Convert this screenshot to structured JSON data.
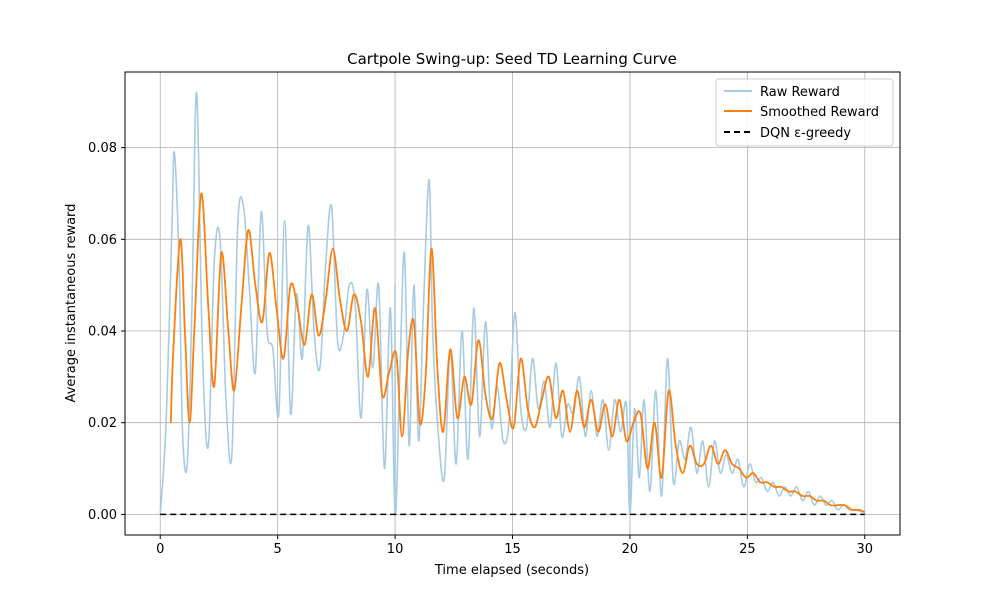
{
  "chart_data": {
    "type": "line",
    "title": "Cartpole Swing-up: Seed TD Learning Curve",
    "xlabel": "Time elapsed (seconds)",
    "ylabel": "Average instantaneous reward",
    "xlim": [
      -1.5,
      31.5
    ],
    "ylim": [
      -0.0045,
      0.0965
    ],
    "x_ticks": [
      0,
      5,
      10,
      15,
      20,
      25,
      30
    ],
    "x_tick_labels": [
      "0",
      "5",
      "10",
      "15",
      "20",
      "25",
      "30"
    ],
    "y_ticks": [
      0.0,
      0.02,
      0.04,
      0.06,
      0.08
    ],
    "y_tick_labels": [
      "0.00",
      "0.02",
      "0.04",
      "0.06",
      "0.08"
    ],
    "grid": true,
    "legend_position": "top-right",
    "series": [
      {
        "name": "Raw Reward",
        "color": "#a6cbe3",
        "style": "solid",
        "x": [
          0.0,
          0.25,
          0.5,
          0.6,
          0.8,
          0.95,
          1.15,
          1.35,
          1.55,
          1.8,
          2.05,
          2.3,
          2.55,
          2.8,
          3.05,
          3.3,
          3.55,
          3.8,
          4.05,
          4.3,
          4.55,
          4.8,
          5.05,
          5.3,
          5.55,
          5.8,
          6.05,
          6.3,
          6.55,
          6.8,
          7.05,
          7.3,
          7.55,
          7.8,
          8.05,
          8.3,
          8.55,
          8.8,
          9.05,
          9.3,
          9.55,
          9.8,
          10.0,
          10.2,
          10.4,
          10.6,
          10.8,
          11.0,
          11.2,
          11.45,
          11.6,
          11.85,
          12.1,
          12.35,
          12.6,
          12.85,
          13.1,
          13.35,
          13.6,
          13.85,
          14.1,
          14.35,
          14.6,
          14.85,
          15.1,
          15.35,
          15.6,
          15.85,
          16.1,
          16.35,
          16.6,
          16.85,
          17.1,
          17.35,
          17.6,
          17.85,
          18.1,
          18.35,
          18.6,
          18.85,
          19.1,
          19.35,
          19.6,
          19.85,
          20.0,
          20.2,
          20.4,
          20.6,
          20.85,
          21.1,
          21.35,
          21.6,
          21.85,
          22.1,
          22.35,
          22.6,
          22.85,
          23.1,
          23.35,
          23.6,
          23.85,
          24.1,
          24.35,
          24.6,
          24.85,
          25.1,
          25.35,
          25.6,
          25.85,
          26.1,
          26.35,
          26.6,
          26.85,
          27.1,
          27.35,
          27.6,
          27.85,
          28.1,
          28.35,
          28.6,
          28.85,
          29.1,
          29.35,
          29.6,
          29.85,
          30.0
        ],
        "y": [
          0.0,
          0.02,
          0.063,
          0.079,
          0.055,
          0.018,
          0.011,
          0.045,
          0.092,
          0.035,
          0.015,
          0.055,
          0.06,
          0.025,
          0.013,
          0.063,
          0.067,
          0.049,
          0.031,
          0.066,
          0.04,
          0.036,
          0.022,
          0.064,
          0.022,
          0.048,
          0.034,
          0.063,
          0.04,
          0.032,
          0.055,
          0.067,
          0.038,
          0.039,
          0.05,
          0.046,
          0.021,
          0.049,
          0.032,
          0.05,
          0.01,
          0.045,
          0.0,
          0.03,
          0.057,
          0.015,
          0.05,
          0.016,
          0.044,
          0.073,
          0.04,
          0.017,
          0.008,
          0.036,
          0.011,
          0.04,
          0.012,
          0.045,
          0.017,
          0.042,
          0.019,
          0.028,
          0.016,
          0.02,
          0.044,
          0.023,
          0.019,
          0.034,
          0.023,
          0.029,
          0.019,
          0.033,
          0.017,
          0.024,
          0.022,
          0.03,
          0.017,
          0.027,
          0.017,
          0.025,
          0.014,
          0.025,
          0.018,
          0.024,
          0.0,
          0.023,
          0.008,
          0.025,
          0.005,
          0.027,
          0.004,
          0.034,
          0.007,
          0.016,
          0.012,
          0.019,
          0.009,
          0.016,
          0.006,
          0.016,
          0.009,
          0.013,
          0.009,
          0.012,
          0.006,
          0.011,
          0.007,
          0.008,
          0.005,
          0.007,
          0.004,
          0.006,
          0.004,
          0.006,
          0.003,
          0.005,
          0.002,
          0.004,
          0.002,
          0.003,
          0.001,
          0.002,
          0.001,
          0.001,
          0.0006,
          0.0005
        ],
        "jumps": [
          [
            10.0,
            0.05,
            0.0
          ],
          [
            20.0,
            0.025,
            0.0
          ]
        ]
      },
      {
        "name": "Smoothed Reward",
        "color": "#ff7f0e",
        "style": "solid",
        "x": [
          0.45,
          0.55,
          0.85,
          1.05,
          1.25,
          1.45,
          1.75,
          2.05,
          2.3,
          2.6,
          2.9,
          3.15,
          3.45,
          3.75,
          4.05,
          4.35,
          4.65,
          4.95,
          5.25,
          5.55,
          5.85,
          6.15,
          6.45,
          6.75,
          7.05,
          7.35,
          7.65,
          7.95,
          8.25,
          8.55,
          8.85,
          9.15,
          9.45,
          9.75,
          10.05,
          10.3,
          10.55,
          10.8,
          11.05,
          11.3,
          11.55,
          11.8,
          12.05,
          12.35,
          12.65,
          12.95,
          13.25,
          13.55,
          13.85,
          14.15,
          14.45,
          14.75,
          15.05,
          15.35,
          15.65,
          15.95,
          16.25,
          16.55,
          16.85,
          17.15,
          17.45,
          17.75,
          18.05,
          18.35,
          18.65,
          18.95,
          19.25,
          19.55,
          19.85,
          20.15,
          20.45,
          20.75,
          21.05,
          21.35,
          21.65,
          21.95,
          22.25,
          22.55,
          22.85,
          23.15,
          23.45,
          23.75,
          24.05,
          24.35,
          24.65,
          24.95,
          25.25,
          25.55,
          25.85,
          26.15,
          26.45,
          26.75,
          27.05,
          27.35,
          27.65,
          27.95,
          28.25,
          28.55,
          28.85,
          29.15,
          29.45,
          29.75,
          30.0
        ],
        "y": [
          0.02,
          0.035,
          0.06,
          0.04,
          0.02,
          0.04,
          0.07,
          0.045,
          0.028,
          0.057,
          0.04,
          0.027,
          0.045,
          0.062,
          0.05,
          0.042,
          0.057,
          0.045,
          0.034,
          0.05,
          0.045,
          0.037,
          0.048,
          0.039,
          0.047,
          0.058,
          0.047,
          0.04,
          0.048,
          0.042,
          0.03,
          0.045,
          0.026,
          0.031,
          0.035,
          0.017,
          0.035,
          0.042,
          0.02,
          0.03,
          0.058,
          0.032,
          0.018,
          0.036,
          0.021,
          0.03,
          0.024,
          0.038,
          0.026,
          0.021,
          0.033,
          0.025,
          0.019,
          0.034,
          0.023,
          0.019,
          0.025,
          0.03,
          0.021,
          0.027,
          0.018,
          0.027,
          0.019,
          0.025,
          0.018,
          0.024,
          0.017,
          0.025,
          0.016,
          0.02,
          0.022,
          0.01,
          0.02,
          0.008,
          0.027,
          0.015,
          0.009,
          0.015,
          0.011,
          0.011,
          0.015,
          0.011,
          0.014,
          0.011,
          0.01,
          0.008,
          0.009,
          0.007,
          0.007,
          0.006,
          0.006,
          0.005,
          0.005,
          0.004,
          0.004,
          0.003,
          0.003,
          0.002,
          0.002,
          0.002,
          0.001,
          0.001,
          0.0005
        ]
      },
      {
        "name": "DQN ε-greedy",
        "color": "#000000",
        "style": "dashed",
        "x": [
          0,
          30
        ],
        "y": [
          0,
          0
        ]
      }
    ]
  }
}
